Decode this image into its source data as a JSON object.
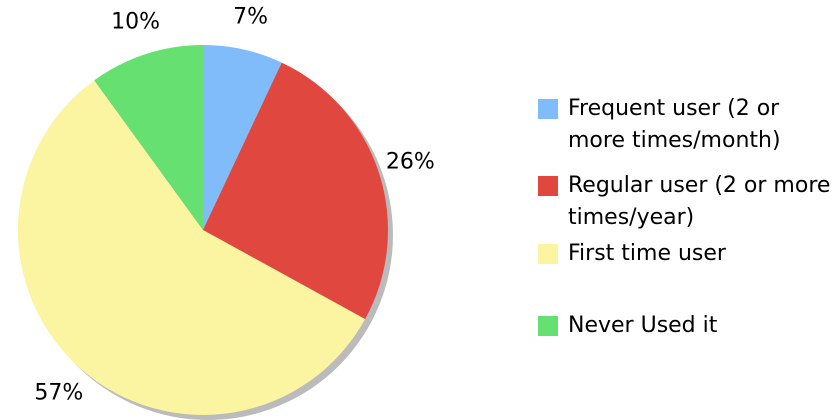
{
  "chart_data": {
    "type": "pie",
    "categories": [
      "Frequent user (2 or more times/month)",
      "Regular user (2 or more times/year)",
      "First time user",
      "Never Used it"
    ],
    "values": [
      7,
      26,
      57,
      10
    ],
    "value_labels": [
      "7%",
      "26%",
      "57%",
      "10%"
    ],
    "colors": [
      "#80bcfa",
      "#e0483f",
      "#fbf4a0",
      "#66e070"
    ],
    "legend": "right"
  }
}
